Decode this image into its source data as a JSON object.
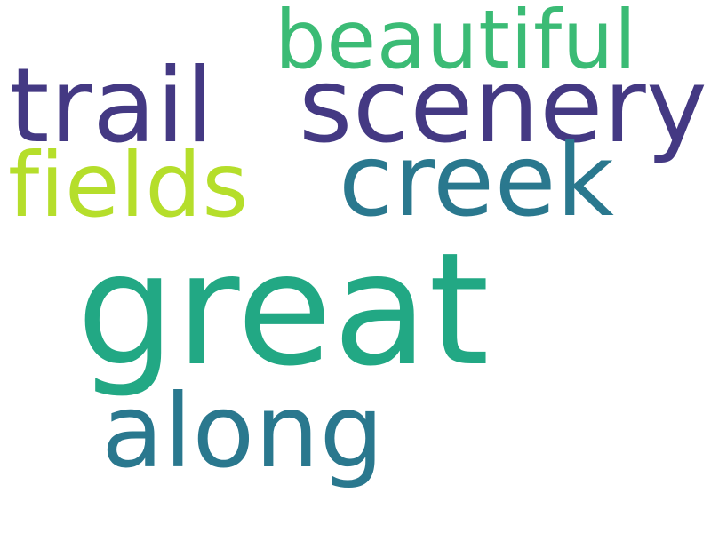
{
  "word_cloud": {
    "background": "#ffffff",
    "words": [
      {
        "key": "great",
        "text": "great",
        "color": "#22a884"
      },
      {
        "key": "scenery",
        "text": "scenery",
        "color": "#443983"
      },
      {
        "key": "trail",
        "text": "trail",
        "color": "#443983"
      },
      {
        "key": "creek",
        "text": "creek",
        "color": "#2a788e"
      },
      {
        "key": "beautiful",
        "text": "beautiful",
        "color": "#3bbb75"
      },
      {
        "key": "fields",
        "text": "fields",
        "color": "#b5de2b"
      },
      {
        "key": "along",
        "text": "along",
        "color": "#2a788e"
      }
    ]
  }
}
